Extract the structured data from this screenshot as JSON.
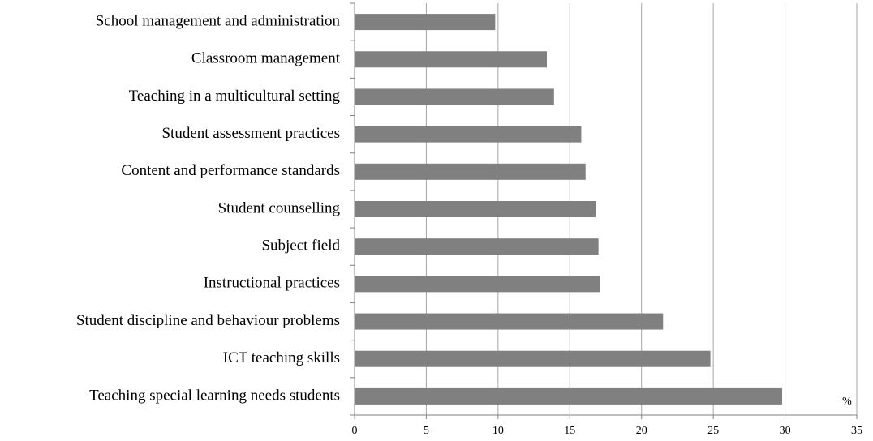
{
  "chart_data": {
    "type": "bar",
    "orientation": "horizontal",
    "categories": [
      "School management and administration",
      "Classroom management",
      "Teaching in a multicultural setting",
      "Student assessment practices",
      "Content and performance standards",
      "Student counselling",
      "Subject field",
      "Instructional practices",
      "Student discipline and behaviour problems",
      "ICT teaching skills",
      "Teaching special learning needs students"
    ],
    "values": [
      9.8,
      13.4,
      13.9,
      15.8,
      16.1,
      16.8,
      17.0,
      17.1,
      21.5,
      24.8,
      29.8
    ],
    "color": "#808080",
    "x_label": "%",
    "xlim": [
      0,
      35
    ],
    "xticks": [
      0,
      5,
      10,
      15,
      20,
      25,
      30,
      35
    ],
    "grid": true
  }
}
